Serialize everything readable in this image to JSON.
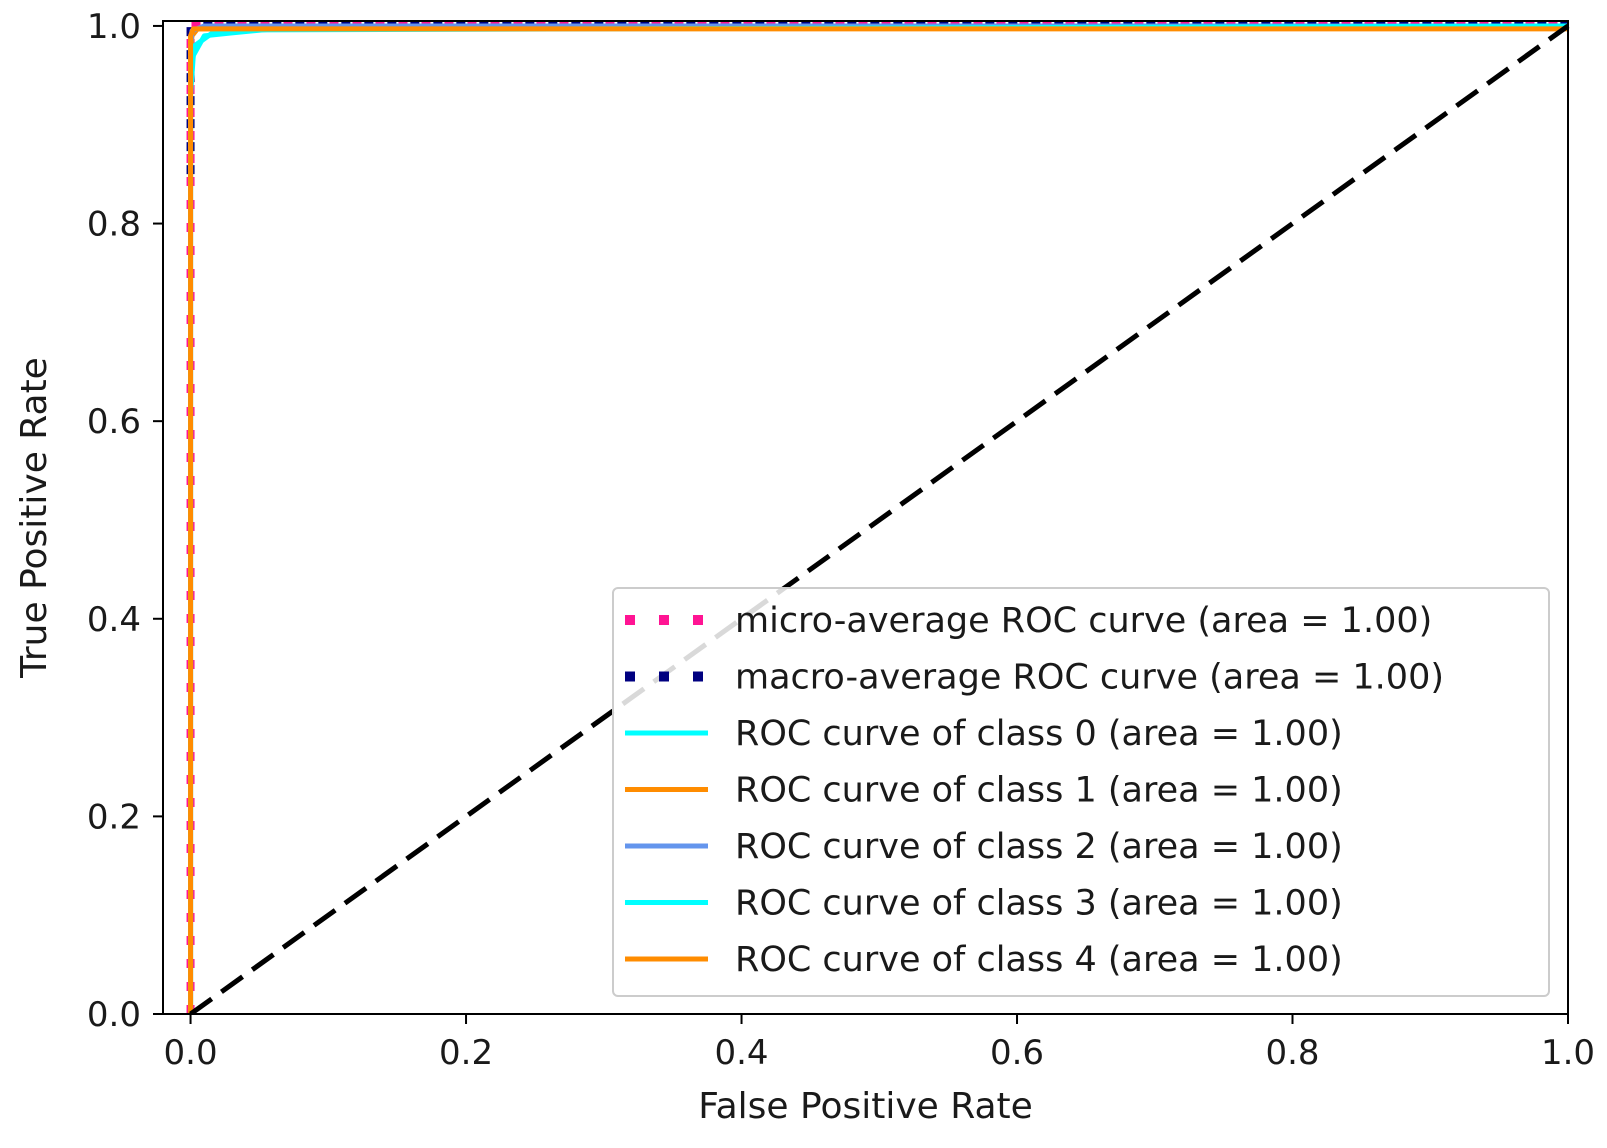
{
  "chart_data": {
    "type": "line",
    "title": "",
    "xlabel": "False Positive Rate",
    "ylabel": "True Positive Rate",
    "xlim": [
      -0.02,
      1.0
    ],
    "ylim": [
      0.0,
      1.005
    ],
    "xticks": [
      0.0,
      0.2,
      0.4,
      0.6,
      0.8,
      1.0
    ],
    "yticks": [
      0.0,
      0.2,
      0.4,
      0.6,
      0.8,
      1.0
    ],
    "xtick_labels": [
      "0.0",
      "0.2",
      "0.4",
      "0.6",
      "0.8",
      "1.0"
    ],
    "ytick_labels": [
      "0.0",
      "0.2",
      "0.4",
      "0.6",
      "0.8",
      "1.0"
    ],
    "grid": false,
    "legend_position": "lower-right",
    "series": [
      {
        "name": "micro-average ROC curve (area = 1.00)",
        "color": "#ff1493",
        "style": "dotted",
        "x": [
          0.0,
          0.0,
          1.0
        ],
        "y": [
          0.0,
          1.0,
          1.0
        ]
      },
      {
        "name": "macro-average ROC curve (area = 1.00)",
        "color": "#000080",
        "style": "dotted",
        "x": [
          0.0,
          0.0,
          0.0,
          1.0
        ],
        "y": [
          0.85,
          0.95,
          1.0,
          1.0
        ]
      },
      {
        "name": "ROC curve of class 0 (area = 1.00)",
        "color": "#00ffff",
        "style": "solid",
        "x": [
          0.0,
          0.0,
          0.002,
          0.01,
          0.03,
          0.06,
          1.0
        ],
        "y": [
          0.0,
          0.93,
          0.97,
          0.99,
          0.993,
          0.997,
          1.0
        ]
      },
      {
        "name": "ROC curve of class 1 (area = 1.00)",
        "color": "#ff8c00",
        "style": "solid",
        "x": [
          0.0,
          0.0,
          0.001,
          0.005,
          1.0
        ],
        "y": [
          0.0,
          0.97,
          0.99,
          0.997,
          1.0
        ]
      },
      {
        "name": "ROC curve of class 2 (area = 1.00)",
        "color": "#6495ed",
        "style": "solid",
        "x": [
          0.0,
          0.0,
          0.001,
          0.01,
          1.0
        ],
        "y": [
          0.0,
          0.98,
          0.995,
          1.0,
          1.0
        ]
      },
      {
        "name": "ROC curve of class 3 (area = 1.00)",
        "color": "#00ffff",
        "style": "solid",
        "x": [
          0.0,
          0.0,
          0.003,
          0.015,
          0.05,
          1.0
        ],
        "y": [
          0.0,
          0.95,
          0.98,
          0.992,
          0.996,
          1.0
        ]
      },
      {
        "name": "ROC curve of class 4 (area = 1.00)",
        "color": "#ff8c00",
        "style": "solid",
        "x": [
          0.0,
          0.0,
          0.002,
          1.0
        ],
        "y": [
          0.0,
          0.99,
          0.997,
          0.997
        ]
      }
    ],
    "reference_line": {
      "color": "#000000",
      "style": "dashed",
      "x": [
        0.0,
        1.0
      ],
      "y": [
        0.0,
        1.0
      ]
    }
  }
}
